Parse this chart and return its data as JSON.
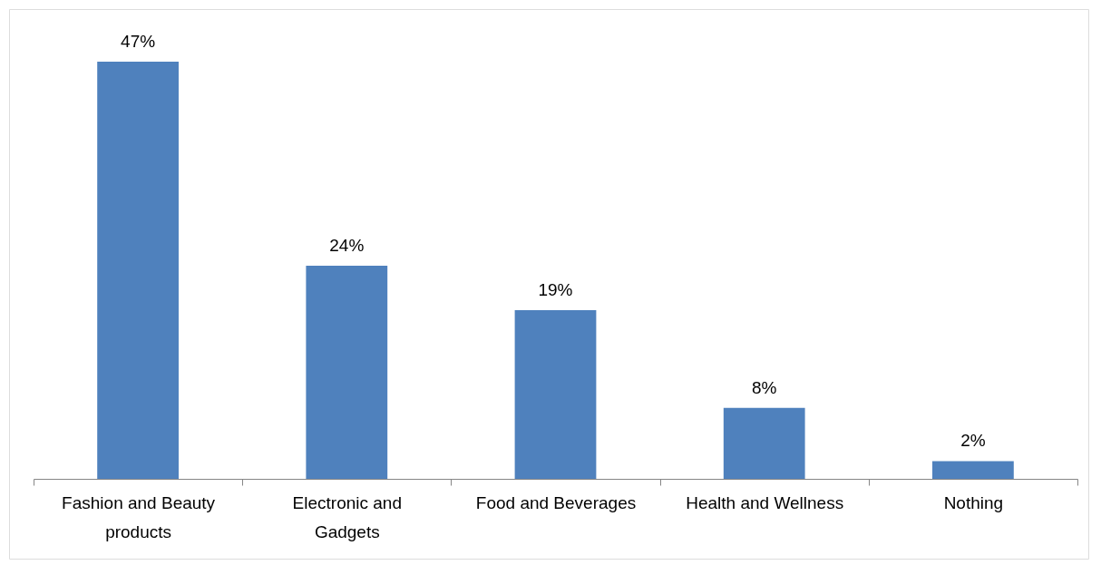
{
  "chart_data": {
    "type": "bar",
    "categories": [
      "Fashion and Beauty products",
      "Electronic and Gadgets",
      "Food and Beverages",
      "Health and Wellness",
      "Nothing"
    ],
    "values": [
      47,
      24,
      19,
      8,
      2
    ],
    "value_labels": [
      "47%",
      "24%",
      "19%",
      "8%",
      "2%"
    ],
    "color": "#4f81bd",
    "tick_labels": "x"
  }
}
